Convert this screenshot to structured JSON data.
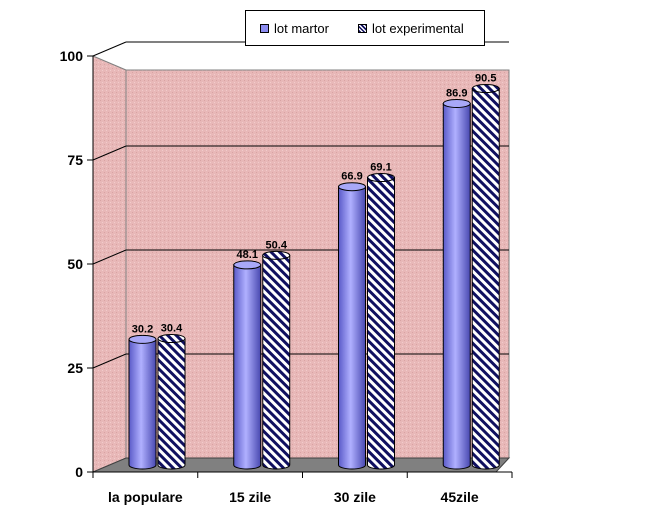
{
  "chart_data": {
    "type": "bar",
    "categories": [
      "la populare",
      "15 zile",
      "30 zile",
      "45zile"
    ],
    "series": [
      {
        "name": "lot martor",
        "values": [
          30.2,
          48.1,
          66.9,
          86.9
        ],
        "color": "#8c8cf0",
        "pattern": "solid"
      },
      {
        "name": "lot experimental",
        "values": [
          30.4,
          50.4,
          69.1,
          90.5
        ],
        "color": "#101060",
        "pattern": "diagonal-hatch"
      }
    ],
    "ylim": [
      0,
      100
    ],
    "yticks": [
      "0",
      "25",
      "50",
      "75",
      "100"
    ],
    "wall_color": "#e8b8b8",
    "floor_color": "#808080",
    "grid": true,
    "legend_position": "top"
  }
}
